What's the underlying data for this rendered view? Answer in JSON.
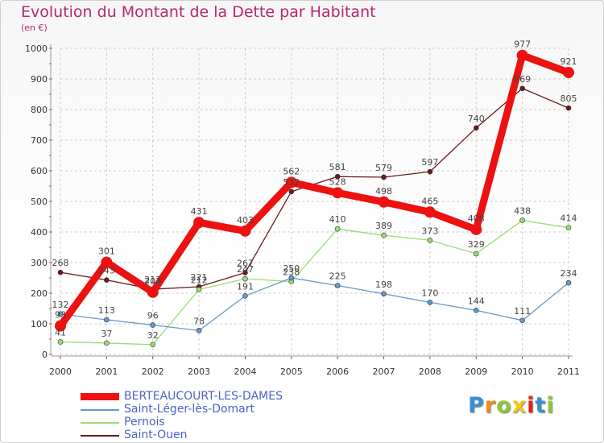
{
  "title": "Evolution du Montant de la Dette par Habitant",
  "unit": "(en €)",
  "logo": {
    "text": "Proxiti",
    "letters": [
      "P",
      "r",
      "o",
      "x",
      "i",
      "t",
      "i"
    ],
    "colors": [
      "#3b8fd6",
      "#f08a1c",
      "#8cc63e",
      "#f0c419",
      "#e2231a",
      "#3b8fd6",
      "#8cc63e"
    ]
  },
  "chart_data": {
    "type": "line",
    "x": [
      "2000",
      "2001",
      "2002",
      "2003",
      "2004",
      "2005",
      "2006",
      "2007",
      "2008",
      "2009",
      "2010",
      "2011"
    ],
    "ylim": [
      0,
      1000
    ],
    "yticks": [
      "0",
      "100",
      "200",
      "300",
      "400",
      "500",
      "600",
      "700",
      "800",
      "900",
      "1000"
    ],
    "grid": true,
    "legend_position": "bottom-left",
    "series": [
      {
        "name": "Saint-Ouen",
        "color": "#6b1a1a",
        "values": [
          268,
          243,
          213,
          221,
          267,
          532,
          581,
          579,
          597,
          740,
          869,
          805
        ],
        "labels": [
          "268",
          "243",
          "213",
          "221",
          "267",
          "532",
          "581",
          "579",
          "597",
          "740",
          "869",
          "805"
        ]
      },
      {
        "name": "Pernois",
        "color": "#99dd77",
        "values": [
          41,
          37,
          32,
          212,
          247,
          238,
          410,
          389,
          373,
          329,
          438,
          414
        ],
        "labels": [
          "41",
          "37",
          "32",
          "212",
          "247",
          "238",
          "410",
          "389",
          "373",
          "329",
          "438",
          "414"
        ]
      },
      {
        "name": "Saint-Léger-lès-Domart",
        "color": "#6699cc",
        "values": [
          132,
          113,
          96,
          78,
          191,
          250,
          225,
          198,
          170,
          144,
          111,
          234
        ],
        "labels": [
          "132",
          "113",
          "96",
          "78",
          "191",
          "250",
          "225",
          "198",
          "170",
          "144",
          "111",
          "234"
        ]
      },
      {
        "name": "BERTEAUCOURT-LES-DAMES",
        "color": "#ee1111",
        "values": [
          93,
          301,
          203,
          431,
          403,
          562,
          528,
          498,
          465,
          408,
          977,
          921
        ],
        "labels": [
          "93",
          "301",
          "203",
          "431",
          "403",
          "562",
          "528",
          "498",
          "465",
          "408",
          "977",
          "921"
        ]
      }
    ],
    "legend": [
      {
        "name": "BERTEAUCOURT-LES-DAMES",
        "color": "#ee1111"
      },
      {
        "name": "Saint-Léger-lès-Domart",
        "color": "#6699cc"
      },
      {
        "name": "Pernois",
        "color": "#99dd77"
      },
      {
        "name": "Saint-Ouen",
        "color": "#6b1a1a"
      }
    ]
  }
}
